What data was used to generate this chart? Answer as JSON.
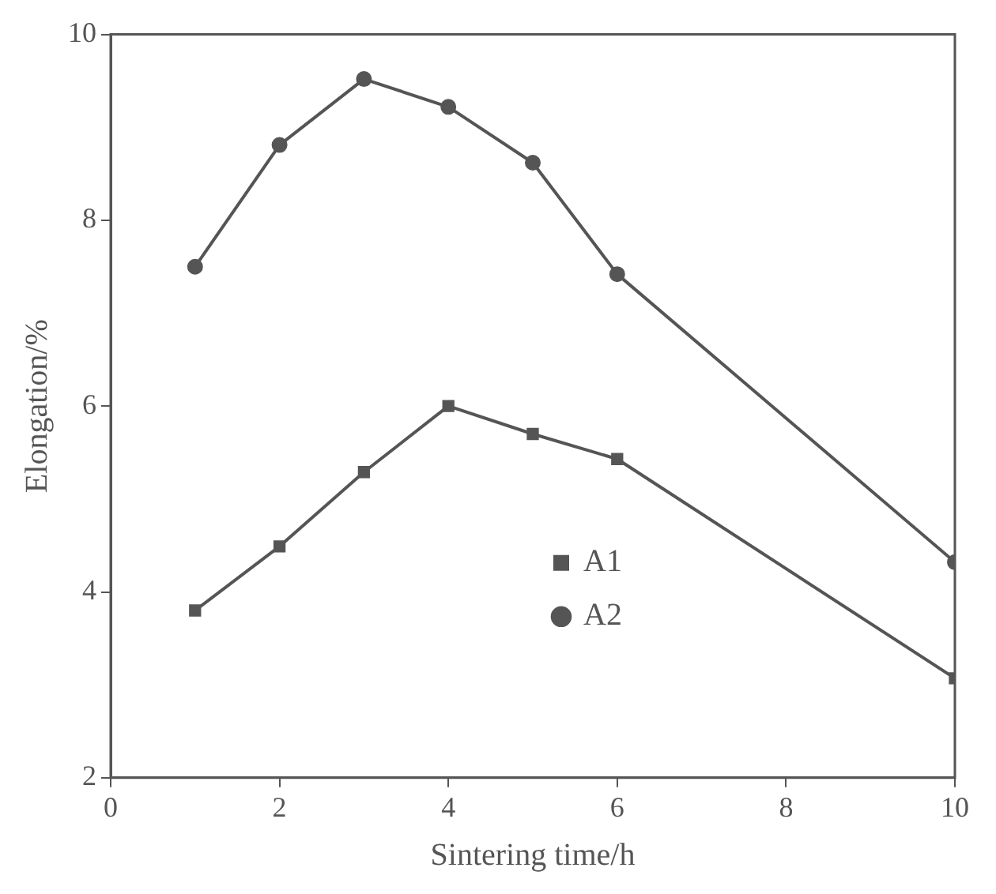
{
  "chart_data": {
    "type": "line",
    "xlabel": "Sintering time/h",
    "ylabel": "Elongation/%",
    "x": [
      1,
      2,
      3,
      4,
      5,
      6,
      10
    ],
    "series": [
      {
        "name": "A1",
        "color": "#555555",
        "marker": "square",
        "values": [
          3.8,
          4.49,
          5.29,
          6.0,
          5.7,
          5.43,
          3.07
        ]
      },
      {
        "name": "A2",
        "color": "#555555",
        "marker": "circle",
        "values": [
          7.5,
          8.81,
          9.52,
          9.22,
          8.62,
          7.42,
          4.32
        ]
      }
    ],
    "xlim": [
      0,
      10
    ],
    "ylim": [
      2,
      10
    ],
    "xticks": [
      0,
      2,
      4,
      6,
      8,
      10
    ],
    "yticks": [
      2,
      4,
      6,
      8,
      10
    ],
    "grid": false,
    "legend": "bottom",
    "line_style": "solid"
  }
}
